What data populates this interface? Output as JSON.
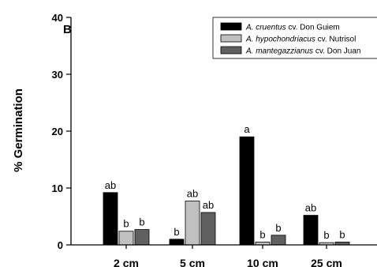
{
  "chart_data": {
    "type": "bar",
    "panel_label": "B",
    "ylabel": "% Germination",
    "xlabel": "",
    "ylim": [
      0,
      40
    ],
    "yticks": [
      0,
      10,
      20,
      30,
      40
    ],
    "categories": [
      "2 cm",
      "5 cm",
      "10 cm",
      "25 cm"
    ],
    "legend_position": "top-right",
    "series": [
      {
        "species": "A. cruentus",
        "cultivar": " cv. Don Guiem",
        "color": "#000000",
        "values": [
          9.2,
          1.0,
          19.0,
          5.2
        ],
        "labels": [
          "ab",
          "b",
          "a",
          "ab"
        ]
      },
      {
        "species": "A. hypochondriacus",
        "cultivar": " cv. Nutrisol",
        "color": "#c0c0c0",
        "values": [
          2.4,
          7.7,
          0.5,
          0.4
        ],
        "labels": [
          "b",
          "ab",
          "b",
          "b"
        ]
      },
      {
        "species": "A. mantegazzianus",
        "cultivar": " cv. Don Juan",
        "color": "#606060",
        "values": [
          2.7,
          5.7,
          1.7,
          0.5
        ],
        "labels": [
          "b",
          "ab",
          "b",
          "b"
        ]
      }
    ]
  }
}
